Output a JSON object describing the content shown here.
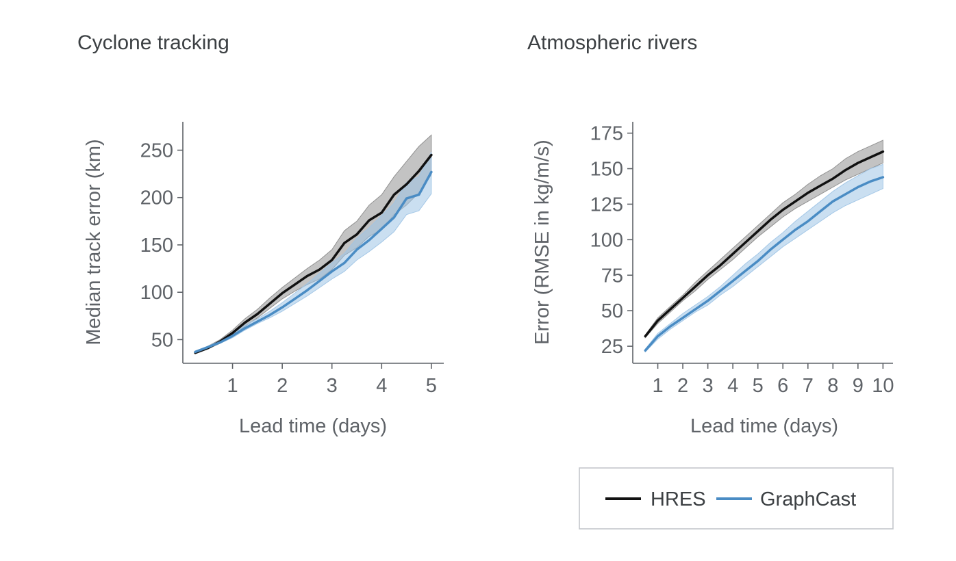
{
  "colors": {
    "hres": "#111111",
    "hres_band": "#888888",
    "graphcast": "#4a8cc4",
    "graphcast_band": "#9ec4e6",
    "axis": "#5f6368",
    "legend_border": "#c4c7cc"
  },
  "legend": {
    "entries": [
      {
        "name": "HRES",
        "color": "#111111"
      },
      {
        "name": "GraphCast",
        "color": "#4a8cc4"
      }
    ]
  },
  "chart_data": [
    {
      "type": "line",
      "title": "Cyclone tracking",
      "xlabel": "Lead time (days)",
      "ylabel": "Median track error (km)",
      "xlim": [
        0.0,
        5.25
      ],
      "ylim": [
        25,
        280
      ],
      "xticks": [
        1,
        2,
        3,
        4,
        5
      ],
      "yticks": [
        50,
        100,
        150,
        200,
        250
      ],
      "series": [
        {
          "name": "HRES",
          "color": "#111111",
          "band_color": "#888888",
          "band_opacity": 0.5,
          "x": [
            0.25,
            0.5,
            0.75,
            1.0,
            1.25,
            1.5,
            1.75,
            2.0,
            2.25,
            2.5,
            2.75,
            3.0,
            3.25,
            3.5,
            3.75,
            4.0,
            4.25,
            4.5,
            4.75,
            5.0
          ],
          "y": [
            36,
            41,
            48,
            57,
            68,
            77,
            88,
            99,
            108,
            117,
            124,
            134,
            152,
            161,
            176,
            184,
            203,
            214,
            228,
            245
          ],
          "lower": [
            35,
            40,
            46,
            54,
            64,
            73,
            83,
            93,
            101,
            108,
            114,
            124,
            139,
            147,
            159,
            166,
            182,
            192,
            205,
            224
          ],
          "upper": [
            37,
            43,
            50,
            60,
            72,
            82,
            94,
            105,
            115,
            125,
            134,
            145,
            165,
            175,
            192,
            203,
            222,
            238,
            254,
            266
          ]
        },
        {
          "name": "GraphCast",
          "color": "#4a8cc4",
          "band_color": "#9ec4e6",
          "band_opacity": 0.55,
          "x": [
            0.25,
            0.5,
            0.75,
            1.0,
            1.25,
            1.5,
            1.75,
            2.0,
            2.25,
            2.5,
            2.75,
            3.0,
            3.25,
            3.5,
            3.75,
            4.0,
            4.25,
            4.5,
            4.75,
            5.0
          ],
          "y": [
            37,
            42,
            47,
            54,
            62,
            69,
            76,
            84,
            93,
            102,
            112,
            122,
            131,
            145,
            155,
            167,
            179,
            199,
            203,
            227
          ],
          "lower": [
            36,
            41,
            46,
            52,
            60,
            67,
            73,
            80,
            88,
            96,
            105,
            114,
            122,
            134,
            143,
            153,
            164,
            182,
            186,
            204
          ],
          "upper": [
            38,
            43,
            49,
            56,
            65,
            72,
            80,
            89,
            99,
            109,
            120,
            131,
            141,
            157,
            168,
            181,
            194,
            216,
            222,
            248
          ]
        }
      ]
    },
    {
      "type": "line",
      "title": "Atmospheric rivers",
      "xlabel": "Lead time (days)",
      "ylabel": "Error (RMSE in kg/m/s)",
      "xlim": [
        0.0,
        10.4
      ],
      "ylim": [
        13,
        183
      ],
      "xticks": [
        1,
        2,
        3,
        4,
        5,
        6,
        7,
        8,
        9,
        10
      ],
      "yticks": [
        25,
        50,
        75,
        100,
        125,
        150,
        175
      ],
      "series": [
        {
          "name": "HRES",
          "color": "#111111",
          "band_color": "#888888",
          "band_opacity": 0.5,
          "x": [
            0.5,
            1.0,
            1.5,
            2.0,
            2.5,
            3.0,
            3.5,
            4.0,
            4.5,
            5.0,
            5.5,
            6.0,
            6.5,
            7.0,
            7.5,
            8.0,
            8.5,
            9.0,
            9.5,
            10.0
          ],
          "y": [
            32,
            43,
            51,
            59,
            67,
            75,
            82,
            90,
            98,
            106,
            114,
            121,
            127,
            133,
            138,
            143,
            149,
            154,
            158,
            162
          ],
          "lower": [
            31,
            41,
            49,
            57,
            64,
            72,
            79,
            86,
            94,
            102,
            109,
            116,
            122,
            127,
            132,
            137,
            142,
            146,
            150,
            154
          ],
          "upper": [
            33,
            45,
            53,
            61,
            70,
            78,
            86,
            94,
            102,
            110,
            118,
            126,
            132,
            139,
            145,
            150,
            157,
            162,
            166,
            170
          ]
        },
        {
          "name": "GraphCast",
          "color": "#4a8cc4",
          "band_color": "#9ec4e6",
          "band_opacity": 0.55,
          "x": [
            0.5,
            1.0,
            1.5,
            2.0,
            2.5,
            3.0,
            3.5,
            4.0,
            4.5,
            5.0,
            5.5,
            6.0,
            6.5,
            7.0,
            7.5,
            8.0,
            8.5,
            9.0,
            9.5,
            10.0
          ],
          "y": [
            22,
            32,
            39,
            45,
            51,
            57,
            64,
            71,
            78,
            85,
            93,
            100,
            107,
            113,
            120,
            127,
            132,
            137,
            141,
            144
          ],
          "lower": [
            21,
            30,
            37,
            43,
            49,
            54,
            61,
            67,
            74,
            81,
            88,
            95,
            101,
            107,
            113,
            119,
            124,
            128,
            132,
            136
          ],
          "upper": [
            23,
            34,
            41,
            48,
            54,
            60,
            67,
            75,
            83,
            90,
            98,
            105,
            113,
            120,
            127,
            134,
            140,
            145,
            150,
            153
          ]
        }
      ]
    }
  ]
}
